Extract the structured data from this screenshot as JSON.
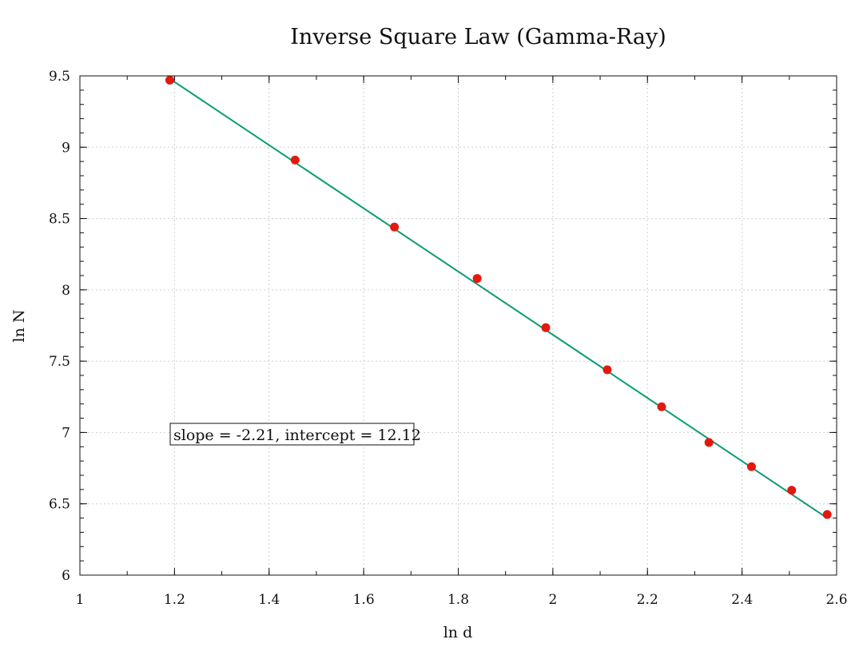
{
  "chart_data": {
    "type": "scatter",
    "title": "Inverse Square Law (Gamma-Ray)",
    "xlabel": "ln d",
    "ylabel": "ln N",
    "xlim": [
      1.0,
      2.6
    ],
    "ylim": [
      6.0,
      9.5
    ],
    "grid": true,
    "x_ticks": [
      "1",
      "1.2",
      "1.4",
      "1.6",
      "1.8",
      "2",
      "2.2",
      "2.4",
      "2.6"
    ],
    "y_ticks": [
      "6",
      "6.5",
      "7",
      "7.5",
      "8",
      "8.5",
      "9",
      "9.5"
    ],
    "series": [
      {
        "type": "scatter",
        "color": "#e3190e",
        "x": [
          1.19,
          1.455,
          1.665,
          1.84,
          1.985,
          2.115,
          2.23,
          2.33,
          2.42,
          2.505,
          2.58
        ],
        "y": [
          9.47,
          8.91,
          8.44,
          8.08,
          7.735,
          7.44,
          7.18,
          6.93,
          6.76,
          6.595,
          6.425
        ]
      },
      {
        "type": "line",
        "color": "#0a9b73",
        "x": [
          1.19,
          2.58
        ],
        "y": [
          9.48,
          6.4
        ]
      }
    ],
    "annotation": "slope = -2.21, intercept = 12.12"
  }
}
